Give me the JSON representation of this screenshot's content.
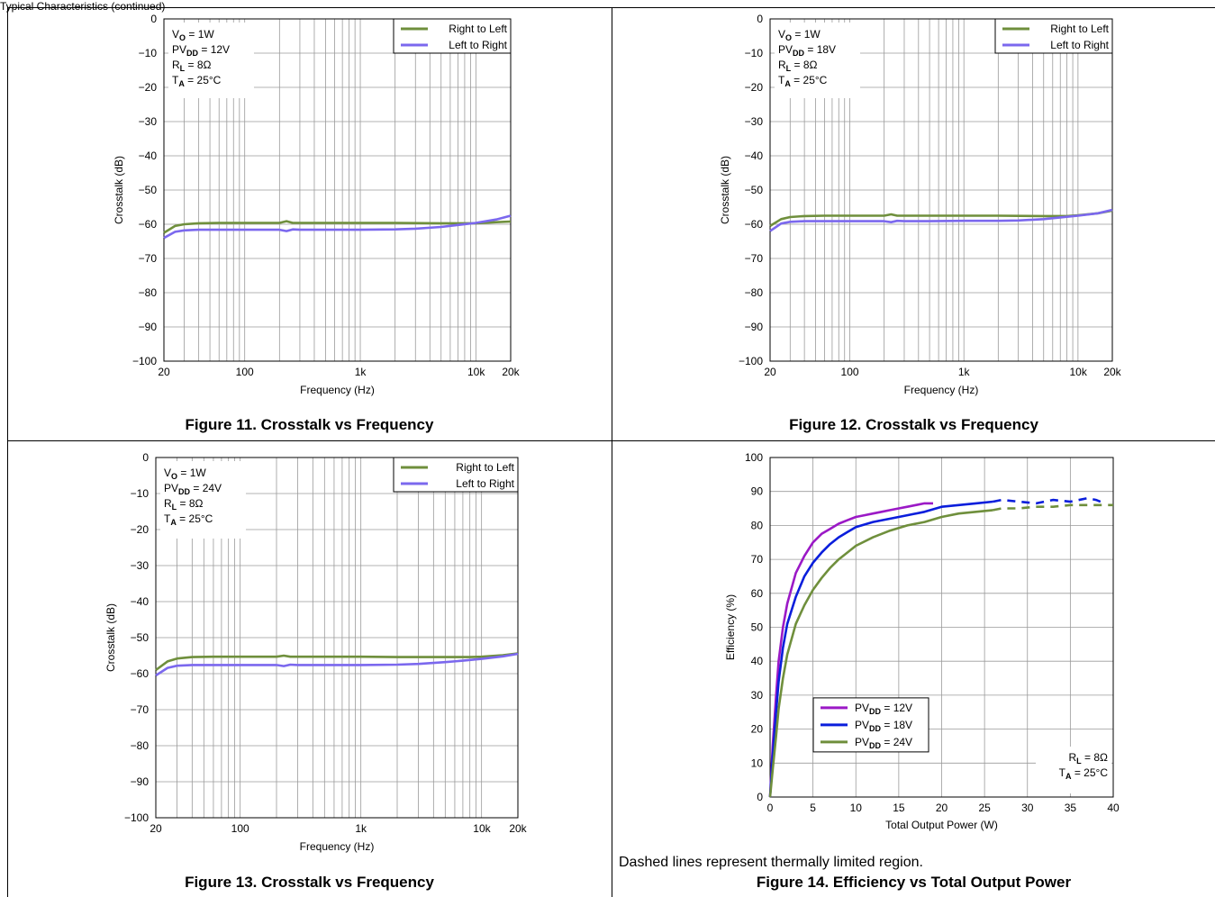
{
  "page": {
    "header_text": "Typical Characteristics (continued)",
    "note_text": "Dashed lines represent thermally limited region."
  },
  "chart_data": [
    {
      "id": "fig11",
      "type": "line",
      "caption": "Figure 11. Crosstalk vs Frequency",
      "xlabel": "Frequency (Hz)",
      "ylabel": "Crosstalk (dB)",
      "xscale": "log",
      "xlim": [
        20,
        20000
      ],
      "ylim": [
        -100,
        0
      ],
      "xticks": [
        20,
        100,
        1000,
        10000,
        20000
      ],
      "xtick_labels": [
        "20",
        "100",
        "1k",
        "10k",
        "20k"
      ],
      "yticks": [
        0,
        -10,
        -20,
        -30,
        -40,
        -50,
        -60,
        -70,
        -80,
        -90,
        -100
      ],
      "ytick_labels": [
        "0",
        "−10",
        "−20",
        "−30",
        "−40",
        "−50",
        "−60",
        "−70",
        "−80",
        "−90",
        "−100"
      ],
      "grid": true,
      "legend_position": "top-right",
      "conditions": [
        {
          "main": "V",
          "sub": "O",
          "rest": " = 1W"
        },
        {
          "main": "PV",
          "sub": "DD",
          "rest": " = 12V"
        },
        {
          "main": "R",
          "sub": "L",
          "rest": " = 8Ω"
        },
        {
          "main": "T",
          "sub": "A",
          "rest": " = 25°C"
        }
      ],
      "series": [
        {
          "name": "Right to Left",
          "color": "#6f8f3c",
          "x": [
            20,
            25,
            30,
            40,
            60,
            100,
            200,
            230,
            260,
            300,
            500,
            1000,
            2000,
            5000,
            8000,
            10000,
            15000,
            20000
          ],
          "y": [
            -62.5,
            -60.5,
            -60.0,
            -59.7,
            -59.6,
            -59.6,
            -59.6,
            -59.1,
            -59.6,
            -59.6,
            -59.6,
            -59.6,
            -59.6,
            -59.7,
            -59.7,
            -59.7,
            -59.4,
            -59.2
          ]
        },
        {
          "name": "Left to Right",
          "color": "#7b68ee",
          "x": [
            20,
            25,
            30,
            40,
            60,
            100,
            200,
            230,
            260,
            300,
            500,
            1000,
            2000,
            3000,
            5000,
            7000,
            10000,
            15000,
            20000
          ],
          "y": [
            -64.0,
            -62.2,
            -61.8,
            -61.6,
            -61.6,
            -61.6,
            -61.6,
            -62.0,
            -61.5,
            -61.6,
            -61.6,
            -61.6,
            -61.5,
            -61.3,
            -60.8,
            -60.2,
            -59.6,
            -58.6,
            -57.5
          ]
        }
      ]
    },
    {
      "id": "fig12",
      "type": "line",
      "caption": "Figure 12. Crosstalk vs Frequency",
      "xlabel": "Frequency (Hz)",
      "ylabel": "Crosstalk (dB)",
      "xscale": "log",
      "xlim": [
        20,
        20000
      ],
      "ylim": [
        -100,
        0
      ],
      "xticks": [
        20,
        100,
        1000,
        10000,
        20000
      ],
      "xtick_labels": [
        "20",
        "100",
        "1k",
        "10k",
        "20k"
      ],
      "yticks": [
        0,
        -10,
        -20,
        -30,
        -40,
        -50,
        -60,
        -70,
        -80,
        -90,
        -100
      ],
      "ytick_labels": [
        "0",
        "−10",
        "−20",
        "−30",
        "−40",
        "−50",
        "−60",
        "−70",
        "−80",
        "−90",
        "−100"
      ],
      "grid": true,
      "legend_position": "top-right",
      "conditions": [
        {
          "main": "V",
          "sub": "O",
          "rest": " = 1W"
        },
        {
          "main": "PV",
          "sub": "DD",
          "rest": " = 18V"
        },
        {
          "main": "R",
          "sub": "L",
          "rest": " = 8Ω"
        },
        {
          "main": "T",
          "sub": "A",
          "rest": " = 25°C"
        }
      ],
      "series": [
        {
          "name": "Right to Left",
          "color": "#6f8f3c",
          "x": [
            20,
            25,
            30,
            40,
            60,
            100,
            200,
            230,
            260,
            300,
            500,
            1000,
            2000,
            5000,
            8000,
            10000,
            15000,
            20000
          ],
          "y": [
            -60.5,
            -58.5,
            -57.9,
            -57.6,
            -57.5,
            -57.5,
            -57.5,
            -57.1,
            -57.5,
            -57.5,
            -57.5,
            -57.5,
            -57.5,
            -57.6,
            -57.6,
            -57.4,
            -56.8,
            -56.0
          ]
        },
        {
          "name": "Left to Right",
          "color": "#7b68ee",
          "x": [
            20,
            25,
            30,
            40,
            60,
            100,
            200,
            230,
            260,
            300,
            500,
            1000,
            2000,
            3000,
            5000,
            7000,
            10000,
            15000,
            20000
          ],
          "y": [
            -62.0,
            -59.8,
            -59.3,
            -59.1,
            -59.1,
            -59.1,
            -59.1,
            -59.4,
            -59.0,
            -59.1,
            -59.1,
            -59.0,
            -59.0,
            -58.9,
            -58.5,
            -58.0,
            -57.5,
            -56.8,
            -55.8
          ]
        }
      ]
    },
    {
      "id": "fig13",
      "type": "line",
      "caption": "Figure 13. Crosstalk vs Frequency",
      "xlabel": "Frequency (Hz)",
      "ylabel": "Crosstalk (dB)",
      "xscale": "log",
      "xlim": [
        20,
        20000
      ],
      "ylim": [
        -100,
        0
      ],
      "xticks": [
        20,
        100,
        1000,
        10000,
        20000
      ],
      "xtick_labels": [
        "20",
        "100",
        "1k",
        "10k",
        "20k"
      ],
      "yticks": [
        0,
        -10,
        -20,
        -30,
        -40,
        -50,
        -60,
        -70,
        -80,
        -90,
        -100
      ],
      "ytick_labels": [
        "0",
        "−10",
        "−20",
        "−30",
        "−40",
        "−50",
        "−60",
        "−70",
        "−80",
        "−90",
        "−100"
      ],
      "grid": true,
      "legend_position": "top-right",
      "conditions": [
        {
          "main": "V",
          "sub": "O",
          "rest": " = 1W"
        },
        {
          "main": "PV",
          "sub": "DD",
          "rest": " = 24V"
        },
        {
          "main": "R",
          "sub": "L",
          "rest": " = 8Ω"
        },
        {
          "main": "T",
          "sub": "A",
          "rest": " = 25°C"
        }
      ],
      "series": [
        {
          "name": "Right to Left",
          "color": "#6f8f3c",
          "x": [
            20,
            25,
            30,
            40,
            60,
            100,
            200,
            230,
            260,
            300,
            500,
            1000,
            2000,
            5000,
            8000,
            10000,
            15000,
            20000
          ],
          "y": [
            -59.0,
            -56.6,
            -55.8,
            -55.4,
            -55.3,
            -55.3,
            -55.3,
            -55.0,
            -55.3,
            -55.3,
            -55.3,
            -55.3,
            -55.4,
            -55.4,
            -55.4,
            -55.3,
            -54.9,
            -54.4
          ]
        },
        {
          "name": "Left to Right",
          "color": "#7b68ee",
          "x": [
            20,
            25,
            30,
            40,
            60,
            100,
            200,
            230,
            260,
            300,
            500,
            1000,
            2000,
            3000,
            5000,
            7000,
            10000,
            15000,
            20000
          ],
          "y": [
            -60.5,
            -58.4,
            -57.8,
            -57.6,
            -57.6,
            -57.6,
            -57.6,
            -57.9,
            -57.5,
            -57.6,
            -57.6,
            -57.6,
            -57.5,
            -57.3,
            -56.8,
            -56.4,
            -55.9,
            -55.2,
            -54.5
          ]
        }
      ]
    },
    {
      "id": "fig14",
      "type": "line",
      "caption": "Figure 14. Efficiency vs Total Output Power",
      "xlabel": "Total Output Power (W)",
      "ylabel": "Efficiency (%)",
      "xscale": "linear",
      "xlim": [
        0,
        40
      ],
      "ylim": [
        0,
        100
      ],
      "xticks": [
        0,
        5,
        10,
        15,
        20,
        25,
        30,
        35,
        40
      ],
      "xtick_labels": [
        "0",
        "5",
        "10",
        "15",
        "20",
        "25",
        "30",
        "35",
        "40"
      ],
      "yticks": [
        0,
        10,
        20,
        30,
        40,
        50,
        60,
        70,
        80,
        90,
        100
      ],
      "ytick_labels": [
        "0",
        "10",
        "20",
        "30",
        "40",
        "50",
        "60",
        "70",
        "80",
        "90",
        "100"
      ],
      "grid": true,
      "legend_position": "lower-left",
      "conditions": [
        {
          "main": "R",
          "sub": "L",
          "rest": " = 8Ω"
        },
        {
          "main": "T",
          "sub": "A",
          "rest": " = 25°C"
        }
      ],
      "series": [
        {
          "name_main": "PV",
          "name_sub": "DD",
          "name_rest": " = 12V",
          "color": "#9b19c6",
          "x": [
            0,
            0.3,
            0.7,
            1,
            1.5,
            2,
            3,
            4,
            5,
            6,
            7,
            8,
            9,
            10,
            11,
            12,
            13,
            14,
            15,
            16,
            17,
            18,
            19
          ],
          "y": [
            0,
            15,
            30,
            40,
            50,
            57,
            66,
            71,
            75,
            77.5,
            79,
            80.5,
            81.5,
            82.5,
            83,
            83.5,
            84,
            84.5,
            85,
            85.5,
            86,
            86.5,
            86.5
          ],
          "dashed_from": null
        },
        {
          "name_main": "PV",
          "name_sub": "DD",
          "name_rest": " = 18V",
          "color": "#0a1edc",
          "x": [
            0,
            0.3,
            0.7,
            1,
            1.5,
            2,
            3,
            4,
            5,
            6,
            7,
            8,
            9,
            10,
            12,
            14,
            15,
            16,
            18,
            20,
            22,
            24,
            26,
            27,
            29,
            31,
            33,
            35,
            37,
            38,
            39
          ],
          "y": [
            0,
            12,
            25,
            34,
            44,
            51,
            59,
            65,
            69,
            72,
            74.5,
            76.5,
            78,
            79.5,
            81,
            82,
            82.5,
            83,
            84,
            85.5,
            86,
            86.5,
            87,
            87.5,
            87,
            86.5,
            87.5,
            87,
            88,
            87.5,
            86.5
          ],
          "dashed_from": 26.5
        },
        {
          "name_main": "PV",
          "name_sub": "DD",
          "name_rest": " = 24V",
          "color": "#6f8f3c",
          "x": [
            0,
            0.3,
            0.7,
            1,
            1.5,
            2,
            3,
            4,
            5,
            6,
            7,
            8,
            9,
            10,
            12,
            14,
            16,
            18,
            20,
            22,
            24,
            26,
            27,
            29,
            31,
            33,
            35,
            37,
            39,
            40
          ],
          "y": [
            0,
            8,
            18,
            26,
            35,
            42,
            51,
            56.5,
            61,
            64.5,
            67.5,
            70,
            72,
            74,
            76.5,
            78.5,
            80,
            81,
            82.5,
            83.5,
            84,
            84.5,
            85,
            85,
            85.5,
            85.5,
            86,
            86,
            86,
            86
          ],
          "dashed_from": 26.5
        }
      ]
    }
  ]
}
